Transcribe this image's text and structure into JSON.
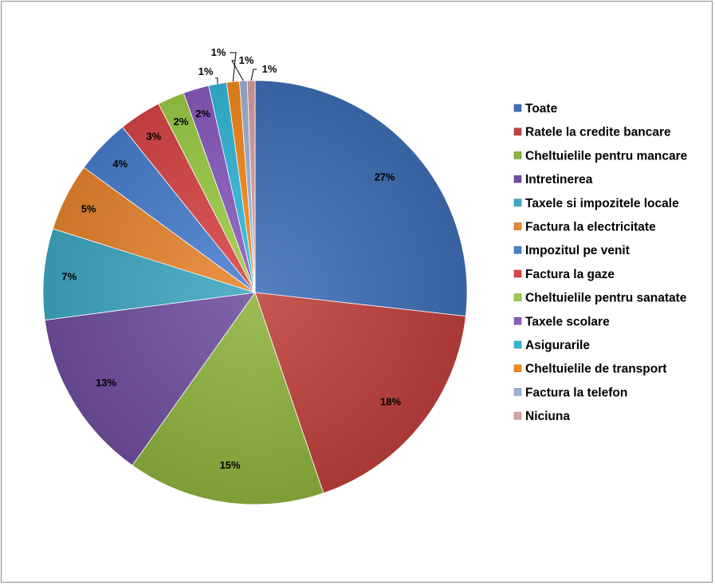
{
  "chart_data": {
    "type": "pie",
    "legend_position": "right",
    "categories": [
      "Toate",
      "Ratele la credite bancare",
      "Cheltuielile pentru mancare",
      "Intretinerea",
      "Taxele si impozitele locale",
      "Factura la electricitate",
      "Impozitul pe venit",
      "Factura la gaze",
      "Cheltuielile pentru sanatate",
      "Taxele scolare",
      "Asigurarile",
      "Cheltuielile de transport",
      "Factura la telefon",
      "Niciuna"
    ],
    "values": [
      27.4,
      18.4,
      15.4,
      13.4,
      7.1,
      5.3,
      4.3,
      3.3,
      2.1,
      2.0,
      1.4,
      1.0,
      0.6,
      0.6
    ],
    "labels": [
      "27%",
      "18%",
      "15%",
      "13%",
      "7%",
      "5%",
      "4%",
      "3%",
      "2%",
      "2%",
      "1%",
      "1%",
      "1%",
      "1%"
    ],
    "colors": [
      "#3f6fb7",
      "#c0413d",
      "#8eb33f",
      "#7050a0",
      "#3ea8c2",
      "#e8852e",
      "#4a7fd0",
      "#d94545",
      "#9ccc45",
      "#8a5cc0",
      "#33b8d8",
      "#f58a1c",
      "#9db4d8",
      "#d9a0a0"
    ]
  }
}
